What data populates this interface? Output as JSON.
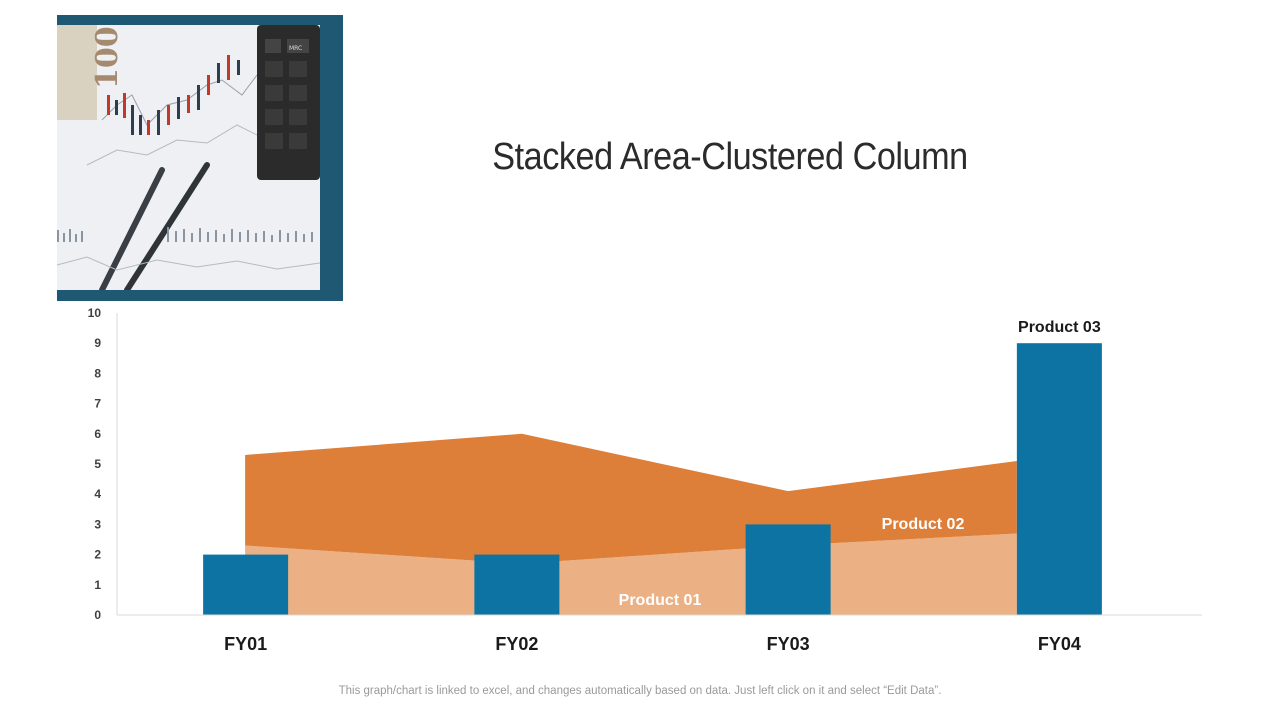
{
  "title": "Stacked Area-Clustered Column",
  "footer_note": "This graph/chart is linked to excel, and changes automatically based on data. Just left click on it and select “Edit Data”.",
  "photo": {
    "banknote_text": "100",
    "calculator_key_label": "MRC"
  },
  "colors": {
    "column": "#0d73a3",
    "area_product01": "#ebb185",
    "area_product02": "#dd7f39",
    "frame": "#1f5873"
  },
  "chart_data": {
    "type": "combo",
    "categories": [
      "FY01",
      "FY02",
      "FY03",
      "FY04"
    ],
    "ylim": [
      0,
      10
    ],
    "yticks": [
      0,
      1,
      2,
      3,
      4,
      5,
      6,
      7,
      8,
      9,
      10
    ],
    "series": [
      {
        "name": "Product 01",
        "kind": "stacked-area",
        "values": [
          2.3,
          1.7,
          2.3,
          2.7
        ]
      },
      {
        "name": "Product 02",
        "kind": "stacked-area",
        "values": [
          3.0,
          4.3,
          1.8,
          2.4
        ]
      },
      {
        "name": "Product 03",
        "kind": "column",
        "values": [
          2.0,
          2.0,
          3.0,
          9.0
        ]
      }
    ],
    "grid": false,
    "legend": "none"
  }
}
